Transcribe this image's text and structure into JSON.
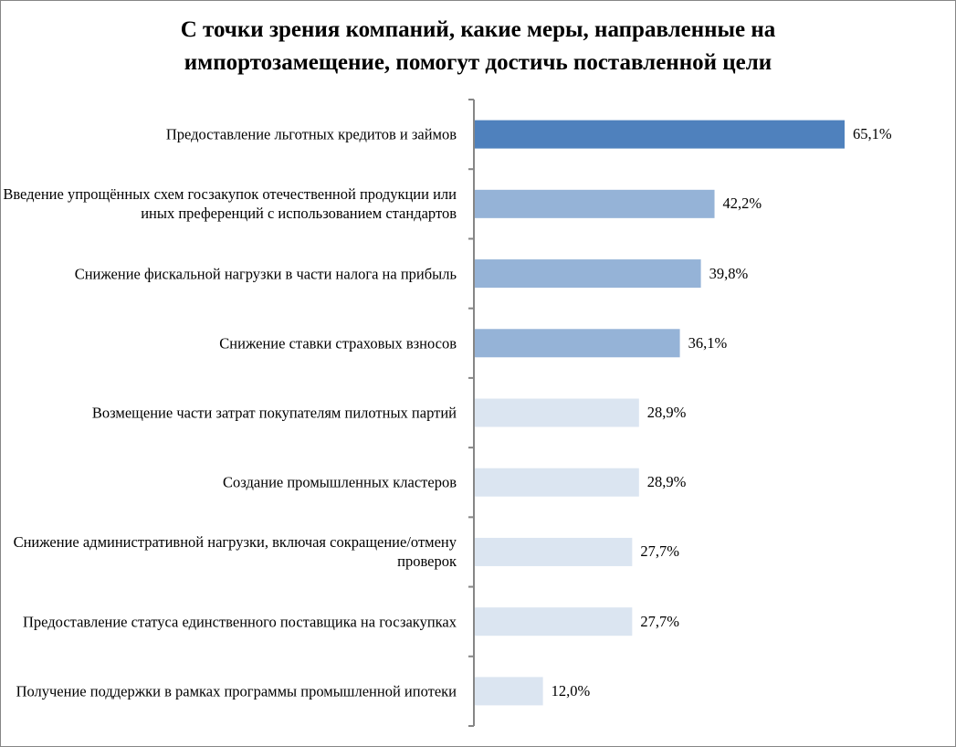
{
  "chart_data": {
    "type": "bar",
    "orientation": "horizontal",
    "title": "С точки зрения компаний, какие меры, направленные на импортозамещение, помогут достичь поставленной цели",
    "title_lines": [
      "С точки зрения компаний, какие меры, направленные на",
      "импортозамещение, помогут достичь поставленной цели"
    ],
    "categories": [
      "Предоставление льготных кредитов и займов",
      "Введение упрощённых схем госзакупок отечественной продукции или иных преференций с использованием стандартов",
      "Снижение фискальной нагрузки в части налога на прибыль",
      "Снижение ставки страховых взносов",
      "Возмещение части затрат покупателям пилотных партий",
      "Создание промышленных кластеров",
      "Снижение административной нагрузки, включая сокращение/отмену проверок",
      "Предоставление статуса единственного поставщика на госзакупках",
      "Получение поддержки в рамках программы промышленной ипотеки"
    ],
    "values": [
      65.1,
      42.2,
      39.8,
      36.1,
      28.9,
      28.9,
      27.7,
      27.7,
      12.0
    ],
    "data_labels": [
      "65,1%",
      "42,2%",
      "39,8%",
      "36,1%",
      "28,9%",
      "28,9%",
      "27,7%",
      "27,7%",
      "12,0%"
    ],
    "bar_colors": [
      "#4f81bd",
      "#95b3d7",
      "#95b3d7",
      "#95b3d7",
      "#dbe5f1",
      "#dbe5f1",
      "#dbe5f1",
      "#dbe5f1",
      "#dbe5f1"
    ],
    "xlim": [
      0,
      65.1
    ],
    "grid": false,
    "legend": "none",
    "value_axis_visible": false
  }
}
